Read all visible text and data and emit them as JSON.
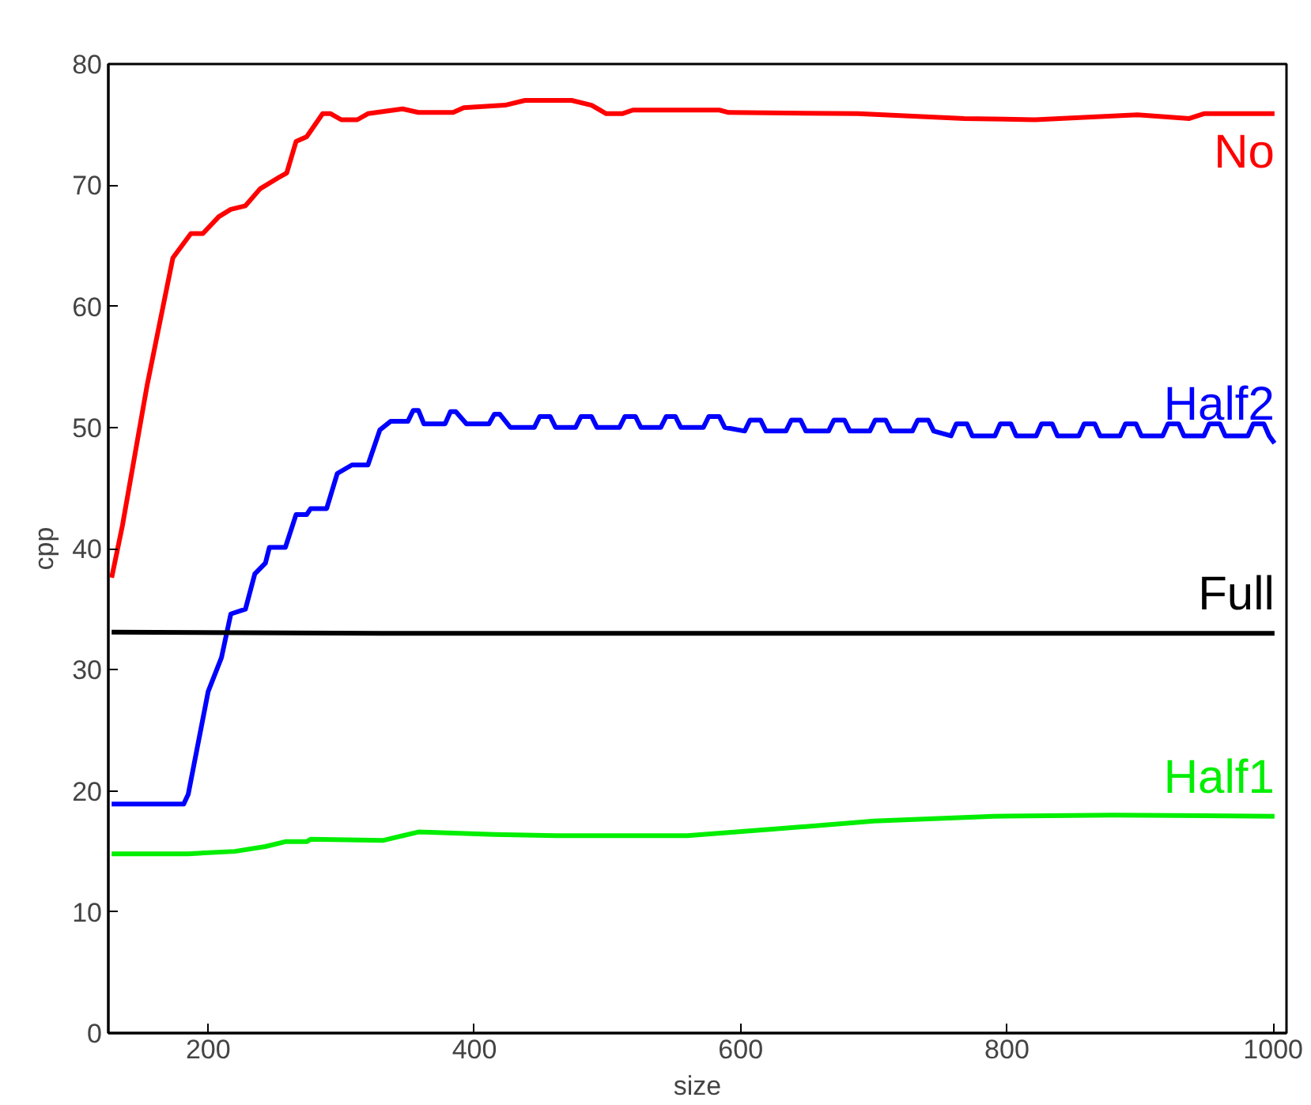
{
  "chart_data": {
    "type": "line",
    "xlabel": "size",
    "ylabel": "cpp",
    "xlim": [
      125,
      1010
    ],
    "ylim": [
      0,
      80
    ],
    "xticks": [
      200,
      400,
      600,
      800,
      1000
    ],
    "yticks": [
      0,
      10,
      20,
      30,
      40,
      50,
      60,
      70,
      80
    ],
    "grid": false,
    "marker": "none",
    "line_style": "solid",
    "series": [
      {
        "name": "No",
        "color": "#ff0000",
        "x": [
          127.5,
          135.6,
          154,
          173.5,
          187,
          196,
          208,
          217,
          228,
          239,
          254,
          259,
          266,
          274,
          286,
          292,
          300,
          312,
          320,
          346,
          358,
          384,
          392,
          423,
          438,
          473,
          488,
          499,
          511,
          519,
          584,
          591,
          688,
          768,
          821,
          898,
          937,
          948,
          1001
        ],
        "values": [
          37.6,
          41.9,
          53.4,
          64,
          66,
          66,
          67.4,
          68,
          68.3,
          69.7,
          70.7,
          71,
          73.6,
          74,
          75.9,
          75.9,
          75.4,
          75.4,
          75.9,
          76.3,
          76,
          76,
          76.4,
          76.6,
          77,
          77,
          76.6,
          75.9,
          75.9,
          76.2,
          76.2,
          76,
          75.9,
          75.5,
          75.4,
          75.8,
          75.5,
          75.9,
          75.9
        ]
      },
      {
        "name": "Half2",
        "color": "#0000ff",
        "x": [
          127.5,
          181.6,
          185,
          200,
          210,
          217,
          228,
          235,
          243,
          246,
          258,
          266,
          274,
          277,
          289,
          297,
          308,
          320,
          329,
          337,
          350,
          354,
          358,
          362,
          366,
          378,
          382,
          386,
          394,
          398,
          411,
          415,
          419,
          427,
          431,
          445,
          449,
          457,
          461,
          476,
          480,
          488,
          492,
          509,
          513,
          521,
          525,
          540,
          544,
          551,
          555,
          572,
          576,
          584,
          588,
          603,
          607,
          615,
          619,
          634,
          638,
          645,
          649,
          666,
          670,
          678,
          682,
          697,
          701,
          709,
          713,
          729,
          733,
          741,
          745,
          758,
          762,
          770,
          774,
          791,
          795,
          803,
          807,
          822,
          826,
          834,
          838,
          854,
          858,
          866,
          870,
          885,
          889,
          897,
          901,
          917,
          921,
          929,
          933,
          948,
          952,
          960,
          964,
          981,
          985,
          993,
          997,
          1001
        ],
        "values": [
          18.9,
          18.9,
          19.7,
          28.2,
          31,
          34.6,
          35,
          37.9,
          38.8,
          40.1,
          40.1,
          42.8,
          42.8,
          43.3,
          43.3,
          46.2,
          46.9,
          46.9,
          49.8,
          50.5,
          50.5,
          51.4,
          51.4,
          50.3,
          50.3,
          50.3,
          51.3,
          51.3,
          50.3,
          50.3,
          50.3,
          51.1,
          51.1,
          50.0,
          50.0,
          50.0,
          50.9,
          50.9,
          50.0,
          50.0,
          50.9,
          50.9,
          50.0,
          50.0,
          50.9,
          50.9,
          50.0,
          50.0,
          50.9,
          50.9,
          50.0,
          50.0,
          50.9,
          50.9,
          50.0,
          49.7,
          50.6,
          50.6,
          49.7,
          49.7,
          50.6,
          50.6,
          49.7,
          49.7,
          50.6,
          50.6,
          49.7,
          49.7,
          50.6,
          50.6,
          49.7,
          49.7,
          50.6,
          50.6,
          49.7,
          49.3,
          50.3,
          50.3,
          49.3,
          49.3,
          50.3,
          50.3,
          49.3,
          49.3,
          50.3,
          50.3,
          49.3,
          49.3,
          50.3,
          50.3,
          49.3,
          49.3,
          50.3,
          50.3,
          49.3,
          49.3,
          50.3,
          50.3,
          49.3,
          49.3,
          50.3,
          50.3,
          49.3,
          49.3,
          50.3,
          50.3,
          49.3,
          48.7
        ]
      },
      {
        "name": "Full",
        "color": "#000000",
        "x": [
          127.5,
          330,
          1001
        ],
        "values": [
          33.1,
          33.0,
          33.0
        ]
      },
      {
        "name": "Half1",
        "color": "#00ee00",
        "x": [
          127.5,
          185,
          220,
          243,
          258,
          274,
          277,
          331,
          358,
          415,
          461,
          560,
          620,
          700,
          790,
          880,
          1001
        ],
        "values": [
          14.8,
          14.8,
          15.0,
          15.4,
          15.8,
          15.8,
          16.0,
          15.9,
          16.6,
          16.4,
          16.3,
          16.3,
          16.8,
          17.5,
          17.9,
          18.0,
          17.9
        ]
      }
    ]
  }
}
